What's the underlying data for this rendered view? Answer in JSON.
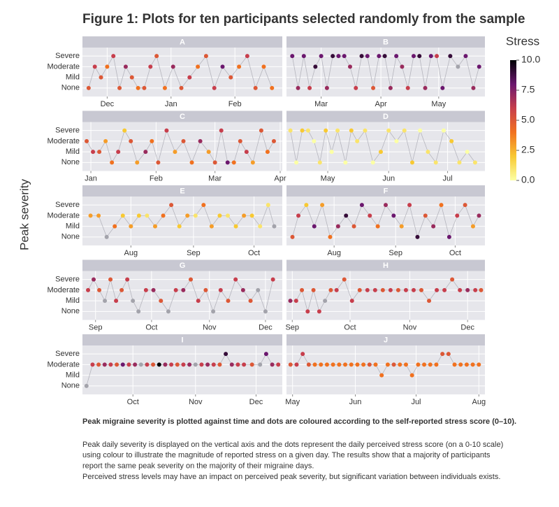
{
  "title": "Figure 1: Plots for ten participants selected randomly from the sample",
  "y_axis_label": "Peak severity",
  "colorbar": {
    "title": "Stress",
    "lim": [
      0,
      10
    ],
    "ticks": [
      {
        "value": 0,
        "label": "0.0"
      },
      2.5,
      {
        "value": 5,
        "label": "5.0"
      },
      7.5,
      {
        "value": 10,
        "label": "10.0"
      }
    ],
    "colorscale": [
      "#fcffa4",
      "#f8c932",
      "#f1711f",
      "#c73e4c",
      "#6b176e",
      "#000004"
    ],
    "missing_color": "#a3a3ab"
  },
  "caption_title": "Peak migraine severity is plotted against time and dots are coloured according to the self-reported stress score (0–10).",
  "caption_lines": [
    "Peak daily severity is displayed on the vertical axis and the dots represent the daily perceived stress score (on a 0-10 scale)",
    "using colour to illustrate the magnitude of reported stress on a given day. The results show that a majority of participants",
    "report the same peak severity on the majority of their migraine days.",
    "Perceived stress levels may have an impact on perceived peak severity, but significant variation between individuals exists."
  ],
  "chart_data": [
    {
      "type": "scatter",
      "title": "A",
      "xlim": [
        0,
        97
      ],
      "ylim": [
        -0.8,
        3.8
      ],
      "xticks": [
        {
          "value": 12,
          "label": "Dec"
        },
        {
          "value": 43,
          "label": "Jan"
        },
        {
          "value": 74,
          "label": "Feb"
        }
      ],
      "yticks": [
        {
          "value": 0,
          "label": "None"
        },
        {
          "value": 1,
          "label": "Mild"
        },
        {
          "value": 2,
          "label": "Moderate"
        },
        {
          "value": 3,
          "label": "Severe"
        }
      ],
      "x": [
        3,
        6,
        9,
        12,
        15,
        18,
        21,
        24,
        27,
        30,
        33,
        36,
        40,
        44,
        48,
        52,
        56,
        60,
        64,
        68,
        72,
        76,
        80,
        84,
        88,
        92
      ],
      "values": [
        0,
        2,
        1,
        2,
        3,
        0,
        2,
        1,
        0,
        0,
        2,
        3,
        0,
        2,
        0,
        1,
        2,
        3,
        0,
        2,
        1,
        2,
        3,
        0,
        2,
        0
      ],
      "stress": [
        5,
        6,
        5,
        4,
        6,
        5,
        7,
        5,
        4,
        5,
        6,
        5,
        4,
        7,
        5,
        6,
        4,
        5,
        6,
        8,
        5,
        4,
        6,
        5,
        4,
        4
      ]
    },
    {
      "type": "scatter",
      "title": "B",
      "xlim": [
        0,
        103
      ],
      "ylim": [
        -0.8,
        3.8
      ],
      "xticks": [
        {
          "value": 18,
          "label": "Mar"
        },
        {
          "value": 49,
          "label": "Apr"
        },
        {
          "value": 79,
          "label": "May"
        }
      ],
      "yticks": [
        0,
        1,
        2,
        3
      ],
      "x": [
        3,
        6,
        9,
        12,
        15,
        18,
        21,
        24,
        27,
        30,
        33,
        36,
        39,
        42,
        45,
        48,
        51,
        54,
        57,
        60,
        63,
        66,
        69,
        72,
        75,
        78,
        81,
        85,
        89,
        93,
        97,
        100
      ],
      "values": [
        3,
        0,
        3,
        0,
        2,
        3,
        0,
        3,
        3,
        3,
        2,
        0,
        3,
        3,
        0,
        3,
        3,
        0,
        3,
        2,
        0,
        3,
        3,
        0,
        3,
        3,
        0,
        3,
        2,
        3,
        0,
        2
      ],
      "stress": [
        8,
        7,
        8,
        6,
        9,
        8,
        7,
        9,
        8,
        8,
        7,
        6,
        9,
        8,
        5,
        8,
        9,
        7,
        8,
        7,
        6,
        8,
        9,
        7,
        8,
        6,
        8,
        9,
        null,
        8,
        7,
        8
      ]
    },
    {
      "type": "scatter",
      "title": "C",
      "xlim": [
        0,
        95
      ],
      "ylim": [
        -0.8,
        3.8
      ],
      "xticks": [
        {
          "value": 4,
          "label": "Jan"
        },
        {
          "value": 35,
          "label": "Feb"
        },
        {
          "value": 63,
          "label": "Mar"
        },
        {
          "value": 94,
          "label": "Apr"
        }
      ],
      "yticks": [
        {
          "value": 0,
          "label": "None"
        },
        {
          "value": 1,
          "label": "Mild"
        },
        {
          "value": 2,
          "label": "Moderate"
        },
        {
          "value": 3,
          "label": "Severe"
        }
      ],
      "x": [
        2,
        5,
        8,
        11,
        14,
        17,
        20,
        23,
        26,
        30,
        33,
        36,
        40,
        44,
        48,
        52,
        56,
        60,
        63,
        66,
        69,
        72,
        75,
        78,
        81,
        85,
        88,
        91
      ],
      "values": [
        2,
        1,
        1,
        2,
        0,
        1,
        3,
        2,
        0,
        1,
        2,
        0,
        3,
        1,
        2,
        0,
        2,
        1,
        0,
        3,
        0,
        0,
        2,
        1,
        0,
        3,
        1,
        2
      ],
      "stress": [
        5,
        6,
        5,
        3,
        4,
        6,
        2,
        5,
        3,
        7,
        4,
        5,
        6,
        3,
        5,
        4,
        7,
        3,
        5,
        6,
        8,
        4,
        5,
        6,
        3,
        5,
        4,
        5
      ]
    },
    {
      "type": "scatter",
      "title": "D",
      "xlim": [
        0,
        101
      ],
      "ylim": [
        -0.8,
        3.8
      ],
      "xticks": [
        {
          "value": 21,
          "label": "May"
        },
        {
          "value": 52,
          "label": "Jun"
        },
        {
          "value": 82,
          "label": "Jul"
        }
      ],
      "yticks": [
        0,
        1,
        2,
        3
      ],
      "x": [
        2,
        5,
        8,
        11,
        14,
        17,
        20,
        23,
        26,
        30,
        33,
        36,
        40,
        44,
        48,
        52,
        56,
        60,
        64,
        68,
        72,
        76,
        80,
        84,
        88,
        92,
        96
      ],
      "values": [
        3,
        0,
        3,
        3,
        2,
        0,
        3,
        1,
        3,
        0,
        3,
        2,
        3,
        0,
        1,
        3,
        2,
        3,
        0,
        3,
        1,
        0,
        3,
        2,
        0,
        1,
        0
      ],
      "stress": [
        1,
        0,
        2,
        1,
        0,
        1,
        2,
        0,
        1,
        0,
        2,
        1,
        1,
        0,
        2,
        1,
        0,
        1,
        2,
        0,
        1,
        1,
        0,
        2,
        1,
        0,
        1
      ]
    },
    {
      "type": "scatter",
      "title": "E",
      "xlim": [
        0,
        99
      ],
      "ylim": [
        -0.8,
        3.8
      ],
      "xticks": [
        {
          "value": 24,
          "label": "Aug"
        },
        {
          "value": 55,
          "label": "Sep"
        },
        {
          "value": 85,
          "label": "Oct"
        }
      ],
      "yticks": [
        {
          "value": 0,
          "label": "None"
        },
        {
          "value": 1,
          "label": "Mild"
        },
        {
          "value": 2,
          "label": "Moderate"
        },
        {
          "value": 3,
          "label": "Severe"
        }
      ],
      "x": [
        4,
        8,
        12,
        16,
        20,
        24,
        28,
        32,
        36,
        40,
        44,
        48,
        52,
        56,
        60,
        64,
        68,
        72,
        76,
        80,
        84,
        88,
        92,
        95
      ],
      "values": [
        2,
        2,
        0,
        1,
        2,
        1,
        2,
        2,
        1,
        2,
        3,
        1,
        2,
        2,
        3,
        1,
        2,
        2,
        1,
        2,
        2,
        1,
        3,
        1
      ],
      "stress": [
        3,
        3,
        null,
        4,
        2,
        3,
        2,
        1,
        3,
        4,
        5,
        2,
        3,
        1,
        4,
        3,
        2,
        1,
        2,
        3,
        2,
        1,
        1,
        null
      ]
    },
    {
      "type": "scatter",
      "title": "F",
      "xlim": [
        0,
        100
      ],
      "ylim": [
        -0.8,
        3.8
      ],
      "xticks": [
        {
          "value": 24,
          "label": "Aug"
        },
        {
          "value": 55,
          "label": "Sep"
        },
        {
          "value": 85,
          "label": "Oct"
        }
      ],
      "yticks": [
        0,
        1,
        2,
        3
      ],
      "x": [
        3,
        6,
        10,
        14,
        18,
        22,
        26,
        30,
        34,
        38,
        42,
        46,
        50,
        54,
        58,
        62,
        66,
        70,
        74,
        78,
        82,
        86,
        90,
        94,
        97
      ],
      "values": [
        0,
        2,
        3,
        1,
        3,
        0,
        1,
        2,
        1,
        3,
        2,
        1,
        3,
        2,
        1,
        3,
        0,
        2,
        1,
        3,
        0,
        2,
        3,
        1,
        2
      ],
      "stress": [
        5,
        6,
        2,
        8,
        3,
        4,
        7,
        9,
        5,
        8,
        6,
        4,
        7,
        8,
        3,
        6,
        9,
        5,
        7,
        4,
        8,
        6,
        5,
        3,
        7
      ]
    },
    {
      "type": "scatter",
      "title": "G",
      "xlim": [
        0,
        107
      ],
      "ylim": [
        -0.8,
        3.8
      ],
      "xticks": [
        {
          "value": 7,
          "label": "Sep"
        },
        {
          "value": 37,
          "label": "Oct"
        },
        {
          "value": 68,
          "label": "Nov"
        },
        {
          "value": 98,
          "label": "Dec"
        }
      ],
      "yticks": [
        {
          "value": 0,
          "label": "None"
        },
        {
          "value": 1,
          "label": "Mild"
        },
        {
          "value": 2,
          "label": "Moderate"
        },
        {
          "value": 3,
          "label": "Severe"
        }
      ],
      "x": [
        3,
        6,
        9,
        12,
        15,
        18,
        21,
        24,
        27,
        30,
        34,
        38,
        42,
        46,
        50,
        54,
        58,
        62,
        66,
        70,
        74,
        78,
        82,
        86,
        90,
        94,
        98,
        102
      ],
      "values": [
        2,
        3,
        2,
        1,
        3,
        1,
        2,
        3,
        1,
        0,
        2,
        2,
        1,
        0,
        2,
        2,
        3,
        1,
        2,
        0,
        2,
        1,
        3,
        2,
        1,
        2,
        0,
        3
      ],
      "stress": [
        6,
        7,
        5,
        null,
        5,
        6,
        5,
        6,
        null,
        null,
        6,
        7,
        5,
        null,
        6,
        7,
        5,
        6,
        5,
        null,
        6,
        5,
        6,
        7,
        5,
        null,
        null,
        6
      ]
    },
    {
      "type": "scatter",
      "title": "H",
      "xlim": [
        0,
        103
      ],
      "ylim": [
        -0.8,
        3.8
      ],
      "xticks": [
        {
          "value": 3,
          "label": "Sep"
        },
        {
          "value": 33,
          "label": "Oct"
        },
        {
          "value": 64,
          "label": "Nov"
        },
        {
          "value": 94,
          "label": "Dec"
        }
      ],
      "yticks": [
        0,
        1,
        2,
        3
      ],
      "x": [
        2,
        5,
        8,
        11,
        14,
        17,
        20,
        23,
        26,
        30,
        34,
        38,
        42,
        46,
        50,
        54,
        58,
        62,
        66,
        70,
        74,
        78,
        82,
        86,
        90,
        94,
        98,
        101
      ],
      "values": [
        1,
        1,
        2,
        0,
        2,
        0,
        1,
        2,
        2,
        3,
        1,
        2,
        2,
        2,
        2,
        2,
        2,
        2,
        2,
        2,
        1,
        2,
        2,
        3,
        2,
        2,
        2,
        2
      ],
      "stress": [
        7,
        6,
        5,
        6,
        5,
        6,
        null,
        5,
        6,
        5,
        6,
        5,
        6,
        6,
        5,
        6,
        5,
        6,
        6,
        5,
        5,
        6,
        6,
        5,
        6,
        7,
        6,
        5
      ]
    },
    {
      "type": "scatter",
      "title": "I",
      "xlim": [
        0,
        99
      ],
      "ylim": [
        -0.8,
        3.8
      ],
      "xticks": [
        {
          "value": 25,
          "label": "Oct"
        },
        {
          "value": 56,
          "label": "Nov"
        },
        {
          "value": 86,
          "label": "Dec"
        }
      ],
      "yticks": [
        {
          "value": 0,
          "label": "None"
        },
        {
          "value": 1,
          "label": "Mild"
        },
        {
          "value": 2,
          "label": "Moderate"
        },
        {
          "value": 3,
          "label": "Severe"
        }
      ],
      "x": [
        2,
        5,
        8,
        11,
        14,
        17,
        20,
        23,
        26,
        29,
        32,
        35,
        38,
        41,
        44,
        47,
        50,
        53,
        56,
        59,
        62,
        65,
        68,
        71,
        74,
        77,
        80,
        84,
        88,
        91,
        94,
        97
      ],
      "values": [
        0,
        2,
        2,
        2,
        2,
        2,
        2,
        2,
        2,
        2,
        2,
        2,
        2,
        2,
        2,
        2,
        2,
        2,
        2,
        2,
        2,
        2,
        2,
        3,
        2,
        2,
        2,
        2,
        2,
        3,
        2,
        2
      ],
      "stress": [
        null,
        6,
        5,
        7,
        6,
        5,
        8,
        6,
        7,
        null,
        6,
        5,
        10,
        7,
        6,
        5,
        6,
        7,
        null,
        6,
        7,
        6,
        5,
        9,
        7,
        6,
        6,
        5,
        null,
        8,
        7,
        6
      ]
    },
    {
      "type": "scatter",
      "title": "J",
      "xlim": [
        0,
        98
      ],
      "ylim": [
        -0.8,
        3.8
      ],
      "xticks": [
        {
          "value": 3,
          "label": "May"
        },
        {
          "value": 34,
          "label": "Jun"
        },
        {
          "value": 64,
          "label": "Jul"
        },
        {
          "value": 95,
          "label": "Aug"
        }
      ],
      "yticks": [
        0,
        1,
        2,
        3
      ],
      "x": [
        2,
        5,
        8,
        11,
        14,
        17,
        20,
        23,
        26,
        29,
        32,
        35,
        38,
        41,
        44,
        47,
        50,
        53,
        56,
        59,
        62,
        65,
        68,
        71,
        74,
        77,
        80,
        83,
        86,
        89,
        92,
        95
      ],
      "values": [
        2,
        2,
        3,
        2,
        2,
        2,
        2,
        2,
        2,
        2,
        2,
        2,
        2,
        2,
        2,
        1,
        2,
        2,
        2,
        2,
        1,
        2,
        2,
        2,
        2,
        3,
        3,
        2,
        2,
        2,
        2,
        2
      ],
      "stress": [
        5,
        6,
        6,
        5,
        4,
        4,
        4,
        4,
        4,
        4,
        4,
        4,
        4,
        5,
        4,
        4,
        4,
        5,
        4,
        4,
        4,
        4,
        4,
        4,
        4,
        5,
        5,
        4,
        4,
        4,
        4,
        4
      ]
    }
  ]
}
